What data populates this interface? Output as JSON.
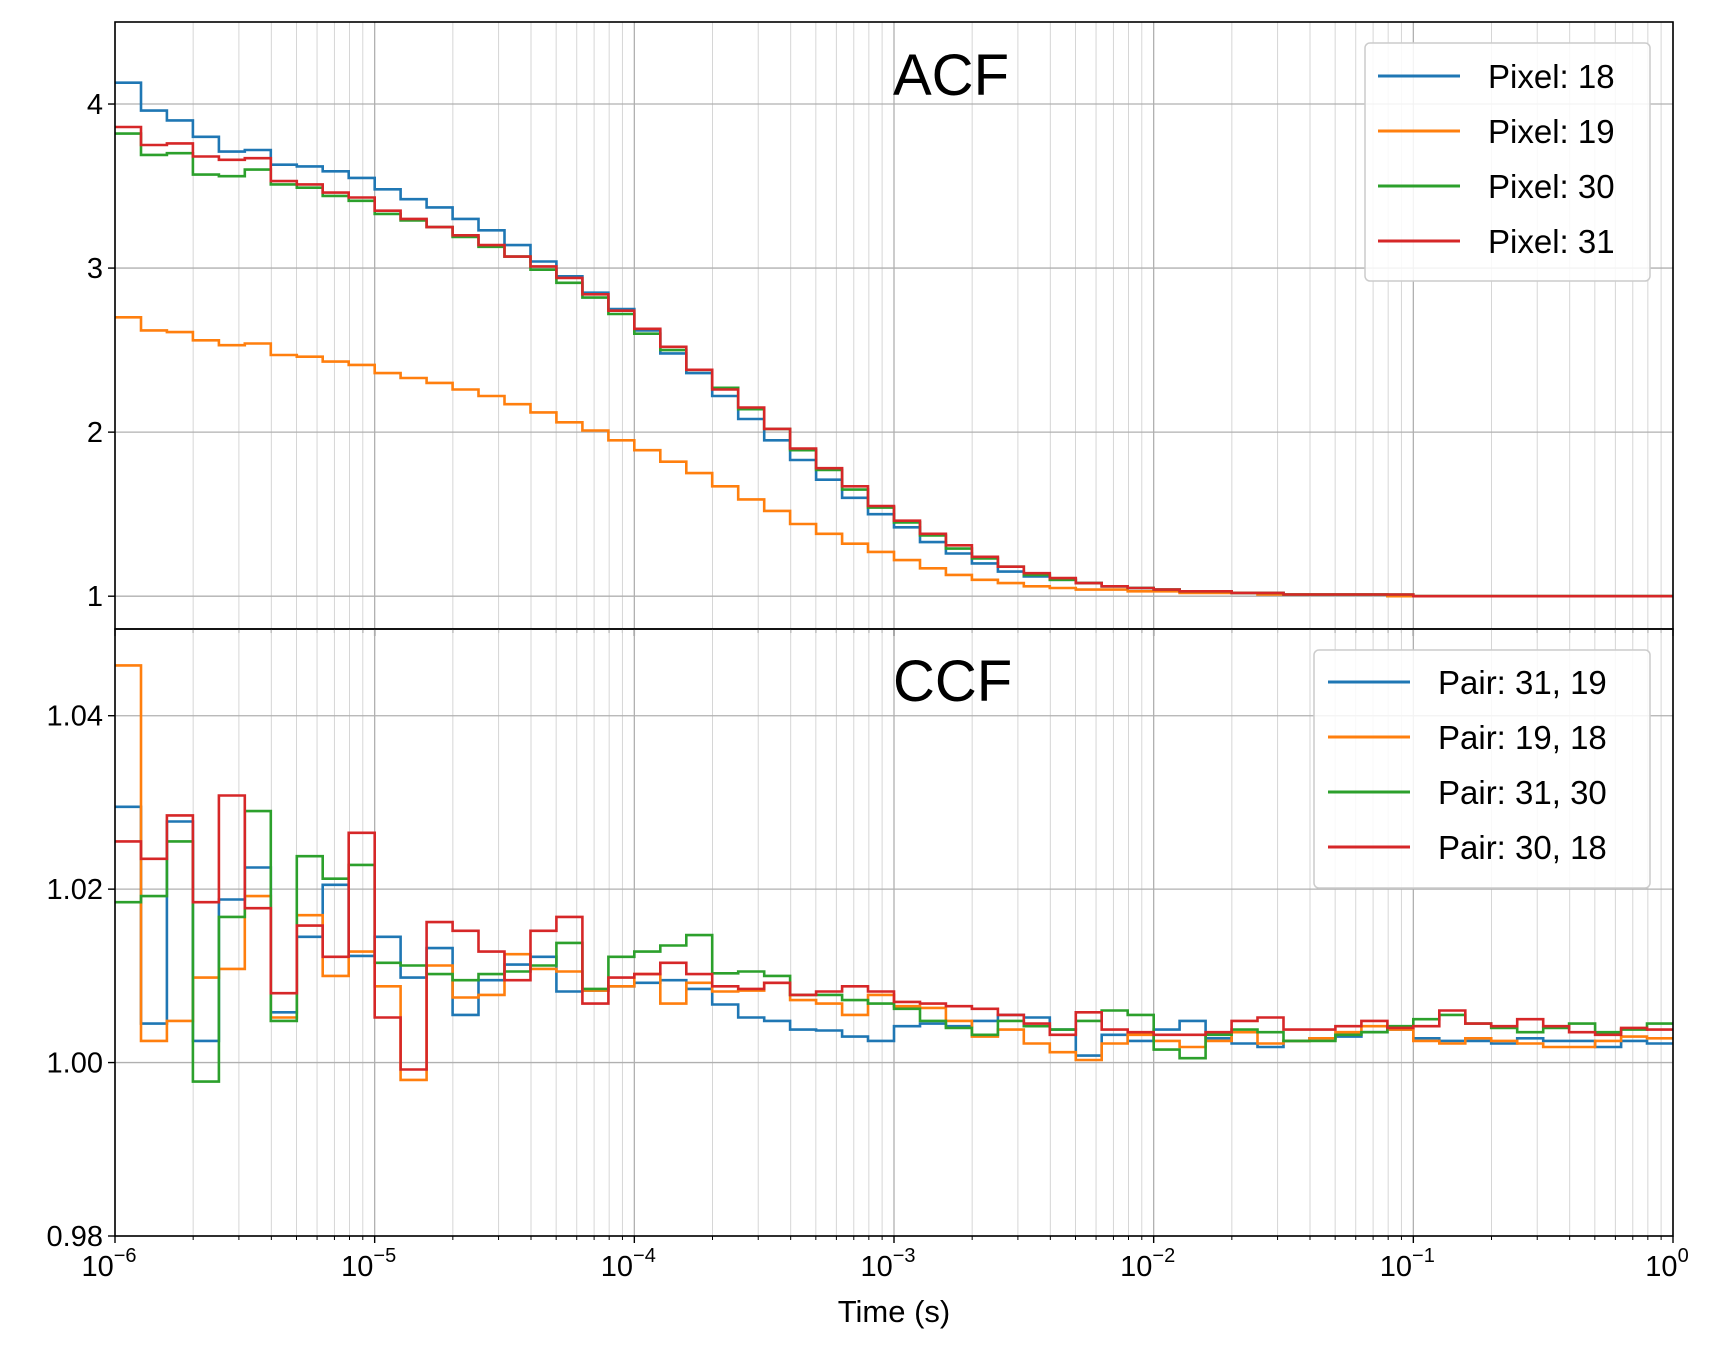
{
  "chart_data": [
    {
      "type": "line",
      "title": "ACF",
      "xlabel": "",
      "ylabel": "",
      "xscale": "log",
      "xlim": [
        1e-06,
        1
      ],
      "ylim": [
        0.8,
        4.5
      ],
      "yticks": [
        1,
        2,
        3,
        4
      ],
      "yticklabels": [
        "1",
        "2",
        "3",
        "4"
      ],
      "grid": "major and minor",
      "legend_position": "top-right",
      "drawstyle": "steps-post",
      "x": [
        1e-06,
        1.259e-06,
        1.585e-06,
        1.995e-06,
        2.512e-06,
        3.162e-06,
        3.981e-06,
        5.012e-06,
        6.31e-06,
        7.943e-06,
        1e-05,
        1.259e-05,
        1.585e-05,
        1.995e-05,
        2.512e-05,
        3.162e-05,
        3.981e-05,
        5.012e-05,
        6.31e-05,
        7.943e-05,
        0.0001,
        0.0001259,
        0.0001585,
        0.0001995,
        0.0002512,
        0.0003162,
        0.0003981,
        0.0005012,
        0.000631,
        0.0007943,
        0.001,
        0.001259,
        0.001585,
        0.001995,
        0.002512,
        0.003162,
        0.003981,
        0.005012,
        0.00631,
        0.007943,
        0.01,
        0.01259,
        0.01585,
        0.01995,
        0.02512,
        0.03162,
        0.03981,
        0.05012,
        0.0631,
        0.07943,
        0.1,
        0.1259,
        0.1585,
        0.1995,
        0.2512,
        0.3162,
        0.3981,
        0.5012,
        0.631,
        0.7943
      ],
      "series": [
        {
          "name": "Pixel: 18",
          "color": "#1f77b4",
          "values": [
            4.13,
            3.96,
            3.9,
            3.8,
            3.71,
            3.72,
            3.63,
            3.62,
            3.59,
            3.55,
            3.48,
            3.42,
            3.37,
            3.3,
            3.23,
            3.14,
            3.04,
            2.95,
            2.85,
            2.75,
            2.62,
            2.48,
            2.36,
            2.22,
            2.08,
            1.95,
            1.83,
            1.71,
            1.6,
            1.5,
            1.42,
            1.33,
            1.26,
            1.2,
            1.15,
            1.12,
            1.1,
            1.08,
            1.06,
            1.05,
            1.04,
            1.03,
            1.03,
            1.02,
            1.02,
            1.01,
            1.01,
            1.01,
            1.01,
            1.0,
            1.0,
            1.0,
            1.0,
            1.0,
            1.0,
            1.0,
            1.0,
            1.0,
            1.0,
            1.0
          ]
        },
        {
          "name": "Pixel: 19",
          "color": "#ff7f0e",
          "values": [
            2.7,
            2.62,
            2.61,
            2.56,
            2.53,
            2.54,
            2.47,
            2.46,
            2.43,
            2.41,
            2.36,
            2.33,
            2.3,
            2.26,
            2.22,
            2.17,
            2.12,
            2.06,
            2.01,
            1.95,
            1.89,
            1.82,
            1.75,
            1.67,
            1.59,
            1.52,
            1.44,
            1.38,
            1.32,
            1.27,
            1.22,
            1.17,
            1.13,
            1.1,
            1.08,
            1.06,
            1.05,
            1.04,
            1.04,
            1.03,
            1.03,
            1.02,
            1.02,
            1.02,
            1.01,
            1.01,
            1.01,
            1.01,
            1.01,
            1.0,
            1.0,
            1.0,
            1.0,
            1.0,
            1.0,
            1.0,
            1.0,
            1.0,
            1.0,
            1.0
          ]
        },
        {
          "name": "Pixel: 30",
          "color": "#2ca02c",
          "values": [
            3.82,
            3.69,
            3.7,
            3.57,
            3.56,
            3.6,
            3.51,
            3.49,
            3.44,
            3.41,
            3.33,
            3.29,
            3.25,
            3.19,
            3.13,
            3.07,
            2.99,
            2.91,
            2.82,
            2.72,
            2.6,
            2.5,
            2.38,
            2.27,
            2.14,
            2.02,
            1.89,
            1.77,
            1.65,
            1.54,
            1.45,
            1.37,
            1.29,
            1.23,
            1.18,
            1.13,
            1.1,
            1.08,
            1.06,
            1.05,
            1.04,
            1.03,
            1.03,
            1.02,
            1.02,
            1.01,
            1.01,
            1.01,
            1.01,
            1.01,
            1.0,
            1.0,
            1.0,
            1.0,
            1.0,
            1.0,
            1.0,
            1.0,
            1.0,
            1.0
          ]
        },
        {
          "name": "Pixel: 31",
          "color": "#d62728",
          "values": [
            3.86,
            3.75,
            3.76,
            3.68,
            3.66,
            3.67,
            3.53,
            3.51,
            3.46,
            3.43,
            3.35,
            3.3,
            3.25,
            3.2,
            3.14,
            3.07,
            3.01,
            2.94,
            2.84,
            2.74,
            2.63,
            2.52,
            2.38,
            2.26,
            2.15,
            2.02,
            1.9,
            1.78,
            1.67,
            1.55,
            1.46,
            1.38,
            1.31,
            1.24,
            1.18,
            1.14,
            1.11,
            1.08,
            1.06,
            1.05,
            1.04,
            1.03,
            1.03,
            1.02,
            1.02,
            1.01,
            1.01,
            1.01,
            1.01,
            1.01,
            1.0,
            1.0,
            1.0,
            1.0,
            1.0,
            1.0,
            1.0,
            1.0,
            1.0,
            1.0
          ]
        }
      ]
    },
    {
      "type": "line",
      "title": "CCF",
      "xlabel": "Time (s)",
      "ylabel": "",
      "xscale": "log",
      "xlim": [
        1e-06,
        1
      ],
      "ylim": [
        0.98,
        1.05
      ],
      "yticks": [
        0.98,
        1.0,
        1.02,
        1.04
      ],
      "yticklabels": [
        "0.98",
        "1.00",
        "1.02",
        "1.04"
      ],
      "xticks": [
        1e-06,
        1e-05,
        0.0001,
        0.001,
        0.01,
        0.1,
        1
      ],
      "xticklabels": [
        {
          "base": "10",
          "exp": "−6"
        },
        {
          "base": "10",
          "exp": "−5"
        },
        {
          "base": "10",
          "exp": "−4"
        },
        {
          "base": "10",
          "exp": "−3"
        },
        {
          "base": "10",
          "exp": "−2"
        },
        {
          "base": "10",
          "exp": "−1"
        },
        {
          "base": "10",
          "exp": "0"
        }
      ],
      "grid": "major and minor",
      "legend_position": "top-right",
      "drawstyle": "steps-post",
      "x": [
        1e-06,
        1.259e-06,
        1.585e-06,
        1.995e-06,
        2.512e-06,
        3.162e-06,
        3.981e-06,
        5.012e-06,
        6.31e-06,
        7.943e-06,
        1e-05,
        1.259e-05,
        1.585e-05,
        1.995e-05,
        2.512e-05,
        3.162e-05,
        3.981e-05,
        5.012e-05,
        6.31e-05,
        7.943e-05,
        0.0001,
        0.0001259,
        0.0001585,
        0.0001995,
        0.0002512,
        0.0003162,
        0.0003981,
        0.0005012,
        0.000631,
        0.0007943,
        0.001,
        0.001259,
        0.001585,
        0.001995,
        0.002512,
        0.003162,
        0.003981,
        0.005012,
        0.00631,
        0.007943,
        0.01,
        0.01259,
        0.01585,
        0.01995,
        0.02512,
        0.03162,
        0.03981,
        0.05012,
        0.0631,
        0.07943,
        0.1,
        0.1259,
        0.1585,
        0.1995,
        0.2512,
        0.3162,
        0.3981,
        0.5012,
        0.631,
        0.7943
      ],
      "series": [
        {
          "name": "Pair: 31, 19",
          "color": "#1f77b4",
          "values": [
            1.0295,
            1.0045,
            1.0278,
            1.0025,
            1.0188,
            1.0225,
            1.0058,
            1.0145,
            1.0205,
            1.0123,
            1.0145,
            1.0098,
            1.0132,
            1.0055,
            1.0095,
            1.0113,
            1.0122,
            1.0082,
            1.0083,
            1.0088,
            1.0092,
            1.0095,
            1.0085,
            1.0067,
            1.0052,
            1.0048,
            1.0038,
            1.0037,
            1.003,
            1.0025,
            1.0042,
            1.0045,
            1.0042,
            1.0048,
            1.0055,
            1.0052,
            1.0038,
            1.0008,
            1.0032,
            1.0025,
            1.0038,
            1.0048,
            1.0028,
            1.0022,
            1.0018,
            1.0025,
            1.0028,
            1.003,
            1.0035,
            1.0038,
            1.0028,
            1.0025,
            1.0025,
            1.0022,
            1.0028,
            1.0025,
            1.0025,
            1.0018,
            1.0025,
            1.0022
          ]
        },
        {
          "name": "Pair: 19, 18",
          "color": "#ff7f0e",
          "values": [
            1.0458,
            1.0025,
            1.0048,
            1.0098,
            1.0108,
            1.0192,
            1.0052,
            1.017,
            1.01,
            1.0128,
            1.0088,
            0.998,
            1.0112,
            1.0075,
            1.0078,
            1.0125,
            1.0108,
            1.0105,
            1.0083,
            1.0088,
            1.0102,
            1.0068,
            1.0092,
            1.0082,
            1.0083,
            1.0092,
            1.0072,
            1.0068,
            1.0055,
            1.0078,
            1.0065,
            1.0063,
            1.0048,
            1.003,
            1.0038,
            1.0022,
            1.0012,
            1.0003,
            1.0022,
            1.0032,
            1.0025,
            1.0018,
            1.0025,
            1.0035,
            1.0022,
            1.0025,
            1.0028,
            1.0035,
            1.0042,
            1.0038,
            1.0025,
            1.0022,
            1.0028,
            1.0025,
            1.0022,
            1.0018,
            1.0018,
            1.0025,
            1.003,
            1.0028
          ]
        },
        {
          "name": "Pair: 31, 30",
          "color": "#2ca02c",
          "values": [
            1.0185,
            1.0192,
            1.0255,
            0.9978,
            1.0168,
            1.029,
            1.0048,
            1.0238,
            1.0212,
            1.0228,
            1.0115,
            1.0112,
            1.0102,
            1.0095,
            1.0102,
            1.0105,
            1.0112,
            1.0138,
            1.0085,
            1.0122,
            1.0128,
            1.0135,
            1.0147,
            1.0103,
            1.0105,
            1.01,
            1.0078,
            1.0078,
            1.0072,
            1.0068,
            1.0062,
            1.0048,
            1.004,
            1.0032,
            1.0048,
            1.0042,
            1.0038,
            1.0048,
            1.006,
            1.0055,
            1.0015,
            1.0005,
            1.0032,
            1.0038,
            1.0035,
            1.0025,
            1.0025,
            1.0032,
            1.0035,
            1.0042,
            1.005,
            1.0055,
            1.0045,
            1.004,
            1.0035,
            1.004,
            1.0045,
            1.0035,
            1.0038,
            1.0045
          ]
        },
        {
          "name": "Pair: 30, 18",
          "color": "#d62728",
          "values": [
            1.0255,
            1.0235,
            1.0285,
            1.0185,
            1.0308,
            1.0178,
            1.008,
            1.0158,
            1.0122,
            1.0265,
            1.0052,
            0.9992,
            1.0162,
            1.0152,
            1.0128,
            1.0095,
            1.0152,
            1.0168,
            1.0068,
            1.0098,
            1.0102,
            1.0115,
            1.0102,
            1.0088,
            1.0085,
            1.0092,
            1.0078,
            1.0082,
            1.0088,
            1.0082,
            1.007,
            1.0068,
            1.0065,
            1.0062,
            1.0055,
            1.0045,
            1.0032,
            1.0058,
            1.0038,
            1.0035,
            1.0032,
            1.0032,
            1.0035,
            1.0048,
            1.0052,
            1.0038,
            1.0038,
            1.0042,
            1.0048,
            1.004,
            1.0042,
            1.006,
            1.0045,
            1.0042,
            1.005,
            1.0042,
            1.0035,
            1.0032,
            1.004,
            1.0038
          ]
        }
      ]
    }
  ]
}
